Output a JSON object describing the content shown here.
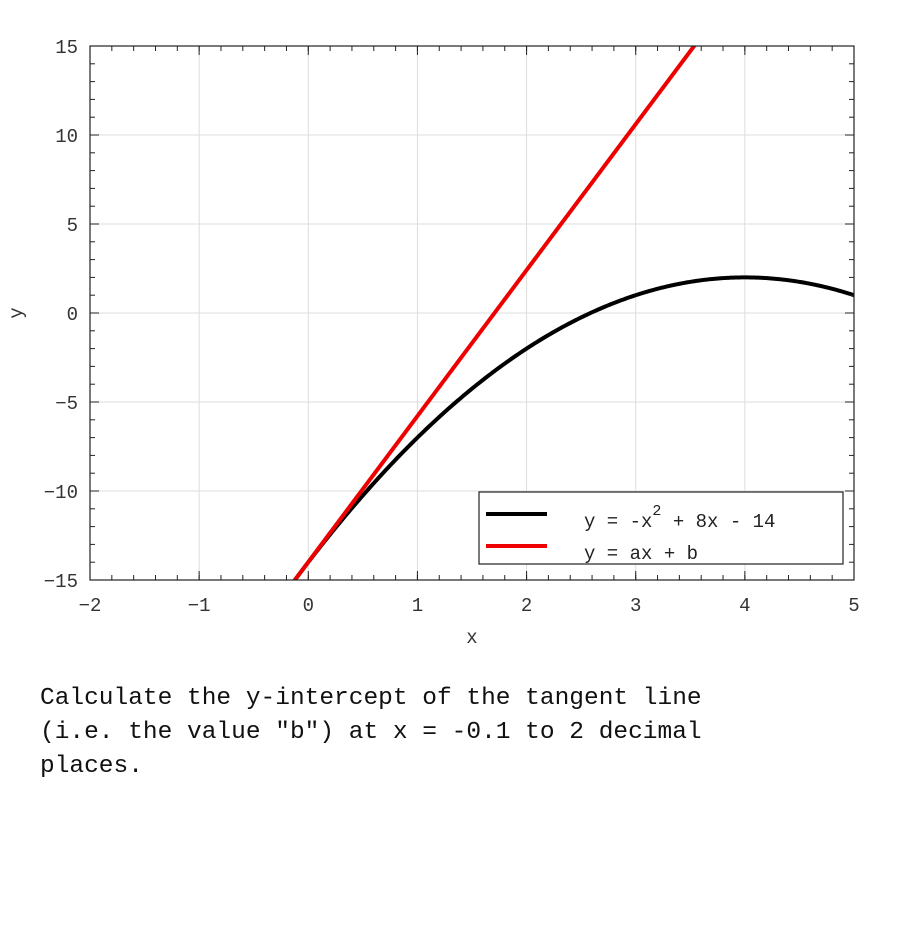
{
  "chart_data": {
    "type": "line",
    "xlabel": "x",
    "ylabel": "y",
    "xlim": [
      -2,
      5
    ],
    "ylim": [
      -15,
      15
    ],
    "xticks": [
      "-2",
      "-1",
      "0",
      "1",
      "2",
      "3",
      "4",
      "5"
    ],
    "yticks": [
      "-15",
      "-10",
      "-5",
      "0",
      "5",
      "10",
      "15"
    ],
    "grid": true,
    "legend_position": "bottom-right",
    "series": [
      {
        "name": "y = -x^2 + 8x - 14",
        "function": "-x^2 + 8x - 14",
        "coefficients": [
          -1,
          8,
          -14
        ],
        "color": "#000000"
      },
      {
        "name": "y = ax + b",
        "function": "tangent at x = -0.1",
        "coefficients": [
          0,
          8.2,
          -13.99
        ],
        "color": "#ee0000"
      }
    ],
    "legend": [
      {
        "pre": "y = -x",
        "sup": "2",
        "post": " + 8x - 14",
        "color": "#000000"
      },
      {
        "pre": "y = ax + b",
        "sup": "",
        "post": "",
        "color": "#ee0000"
      }
    ]
  },
  "question": "Calculate the y-intercept of the tangent line\n(i.e. the value \"b\") at x = -0.1 to 2 decimal\nplaces."
}
